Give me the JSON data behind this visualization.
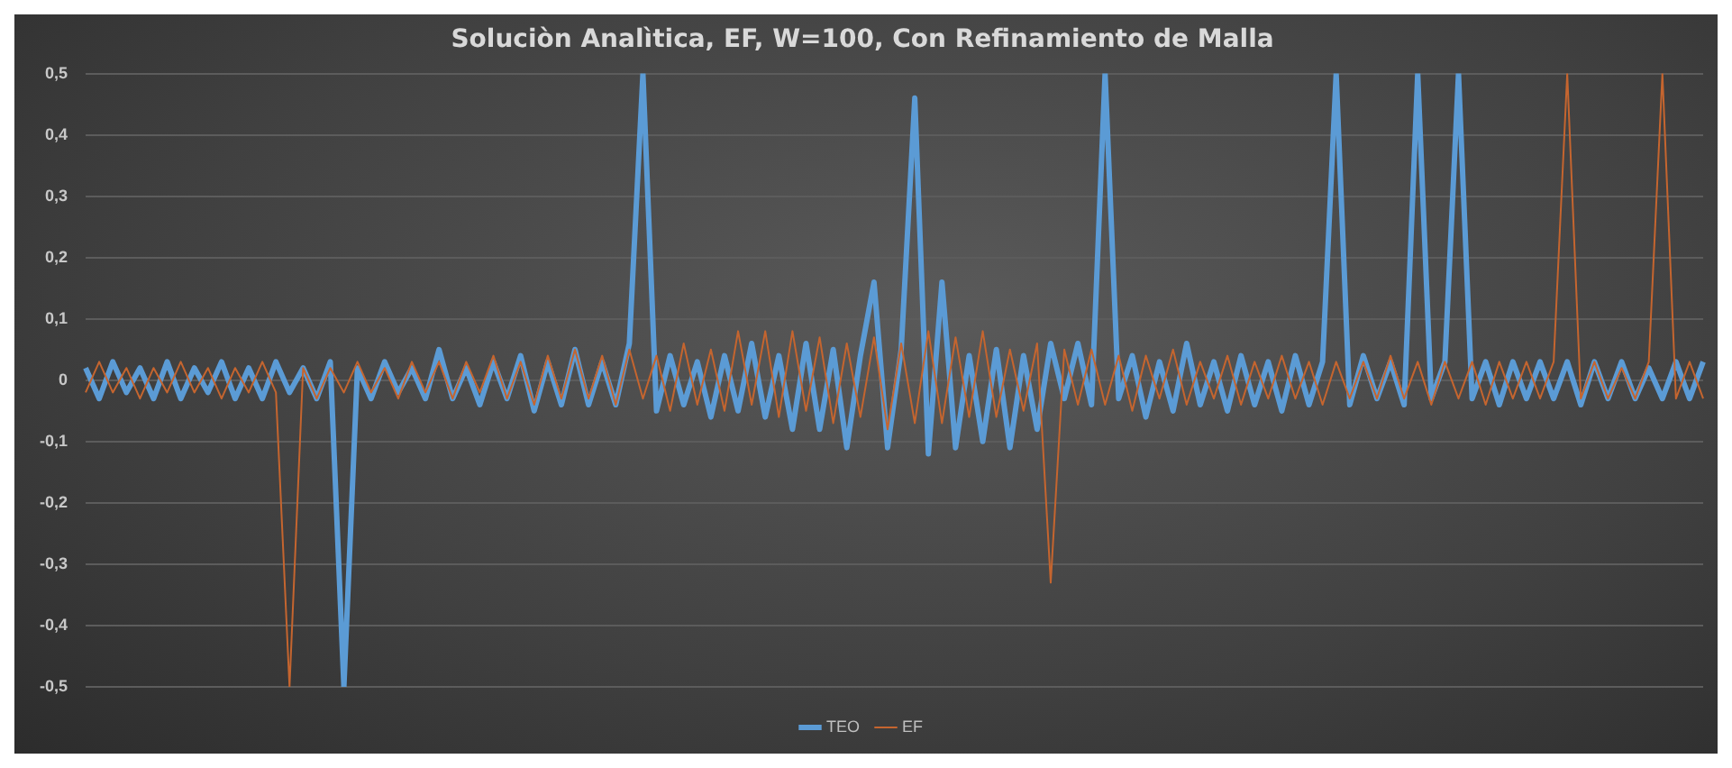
{
  "chart_data": {
    "type": "line",
    "title": "Soluciòn Analìtica, EF, W=100, Con Refinamiento de Malla",
    "categories": [
      null,
      null,
      null,
      null,
      null,
      null,
      null,
      null,
      null,
      null,
      null,
      null,
      null,
      null,
      null,
      null,
      null,
      null,
      null,
      null,
      null,
      null,
      null,
      null,
      null,
      null,
      null,
      null,
      null,
      null,
      null,
      null,
      null,
      null,
      null,
      null,
      null,
      null,
      null,
      null,
      null,
      null,
      null,
      null,
      null,
      null,
      null,
      null,
      null,
      null,
      null,
      null,
      null,
      null,
      null,
      null,
      null,
      null,
      null,
      null,
      null,
      null,
      null,
      null,
      null,
      null,
      null,
      null,
      null,
      null,
      null,
      null,
      null,
      null,
      null,
      null,
      null,
      null,
      null,
      null,
      null,
      null,
      null,
      null,
      null,
      null,
      null,
      null,
      null,
      null,
      null,
      null,
      null,
      null,
      null,
      null,
      null,
      null,
      null,
      null,
      null,
      null,
      null,
      null,
      null,
      null,
      null,
      null,
      null,
      null,
      null,
      null,
      null,
      null,
      null,
      null,
      null,
      null,
      null,
      null
    ],
    "series": [
      {
        "name": "TEO",
        "color": "#5b9bd5",
        "values": [
          0.02,
          -0.03,
          0.03,
          -0.02,
          0.02,
          -0.03,
          0.03,
          -0.03,
          0.02,
          -0.02,
          0.03,
          -0.03,
          0.02,
          -0.03,
          0.03,
          -0.02,
          0.02,
          -0.03,
          0.03,
          -0.5,
          0.02,
          -0.03,
          0.03,
          -0.02,
          0.02,
          -0.03,
          0.05,
          -0.03,
          0.02,
          -0.04,
          0.03,
          -0.03,
          0.04,
          -0.05,
          0.03,
          -0.04,
          0.05,
          -0.04,
          0.03,
          -0.04,
          0.06,
          0.5,
          -0.05,
          0.04,
          -0.04,
          0.03,
          -0.06,
          0.04,
          -0.05,
          0.06,
          -0.06,
          0.04,
          -0.08,
          0.06,
          -0.08,
          0.05,
          -0.11,
          0.04,
          0.16,
          -0.11,
          0.05,
          0.46,
          -0.12,
          0.16,
          -0.11,
          0.04,
          -0.1,
          0.05,
          -0.11,
          0.04,
          -0.08,
          0.06,
          -0.03,
          0.06,
          -0.04,
          0.5,
          -0.03,
          0.04,
          -0.06,
          0.03,
          -0.05,
          0.06,
          -0.04,
          0.03,
          -0.05,
          0.04,
          -0.04,
          0.03,
          -0.05,
          0.04,
          -0.04,
          0.03,
          0.5,
          -0.04,
          0.04,
          -0.03,
          0.03,
          -0.04,
          0.5,
          -0.03,
          0.03,
          0.5,
          -0.03,
          0.03,
          -0.04,
          0.03,
          -0.03,
          0.03,
          -0.03,
          0.03,
          -0.04,
          0.03,
          -0.03,
          0.03,
          -0.03,
          0.02,
          -0.03,
          0.03,
          -0.03,
          0.03
        ]
      },
      {
        "name": "EF",
        "color": "#c5652f",
        "values": [
          -0.02,
          0.03,
          -0.02,
          0.02,
          -0.03,
          0.02,
          -0.02,
          0.03,
          -0.02,
          0.02,
          -0.03,
          0.02,
          -0.02,
          0.03,
          -0.02,
          -0.5,
          0.02,
          -0.03,
          0.02,
          -0.02,
          0.03,
          -0.02,
          0.02,
          -0.03,
          0.03,
          -0.02,
          0.03,
          -0.03,
          0.03,
          -0.02,
          0.04,
          -0.03,
          0.03,
          -0.04,
          0.04,
          -0.03,
          0.05,
          -0.03,
          0.04,
          -0.04,
          0.05,
          -0.03,
          0.04,
          -0.05,
          0.06,
          -0.04,
          0.05,
          -0.05,
          0.08,
          -0.04,
          0.08,
          -0.06,
          0.08,
          -0.05,
          0.07,
          -0.07,
          0.06,
          -0.06,
          0.07,
          -0.08,
          0.06,
          -0.07,
          0.08,
          -0.07,
          0.07,
          -0.06,
          0.08,
          -0.06,
          0.05,
          -0.05,
          0.06,
          -0.33,
          0.05,
          -0.04,
          0.05,
          -0.04,
          0.04,
          -0.05,
          0.04,
          -0.03,
          0.05,
          -0.04,
          0.03,
          -0.03,
          0.04,
          -0.04,
          0.03,
          -0.03,
          0.04,
          -0.03,
          0.03,
          -0.04,
          0.03,
          -0.03,
          0.03,
          -0.03,
          0.04,
          -0.03,
          0.03,
          -0.04,
          0.03,
          -0.03,
          0.03,
          -0.04,
          0.03,
          -0.03,
          0.03,
          -0.03,
          0.03,
          0.5,
          -0.03,
          0.03,
          -0.03,
          0.02,
          -0.03,
          0.03,
          0.5,
          -0.03,
          0.03,
          -0.03
        ]
      }
    ],
    "ylim": [
      -0.5,
      0.5
    ],
    "yticks": [
      {
        "value": -0.5,
        "label": "-0,5"
      },
      {
        "value": -0.4,
        "label": "-0,4"
      },
      {
        "value": -0.3,
        "label": "-0,3"
      },
      {
        "value": -0.2,
        "label": "-0,2"
      },
      {
        "value": -0.1,
        "label": "-0,1"
      },
      0,
      {
        "value": 0.1,
        "label": "0,1"
      },
      {
        "value": 0.2,
        "label": "0,2"
      },
      {
        "value": 0.3,
        "label": "0,3"
      },
      {
        "value": 0.4,
        "label": "0,4"
      },
      {
        "value": 0.5,
        "label": "0,5"
      }
    ],
    "grid": "y",
    "legend": "bottom",
    "tick_labels": "y",
    "marker": "none",
    "line_style": "solid"
  }
}
